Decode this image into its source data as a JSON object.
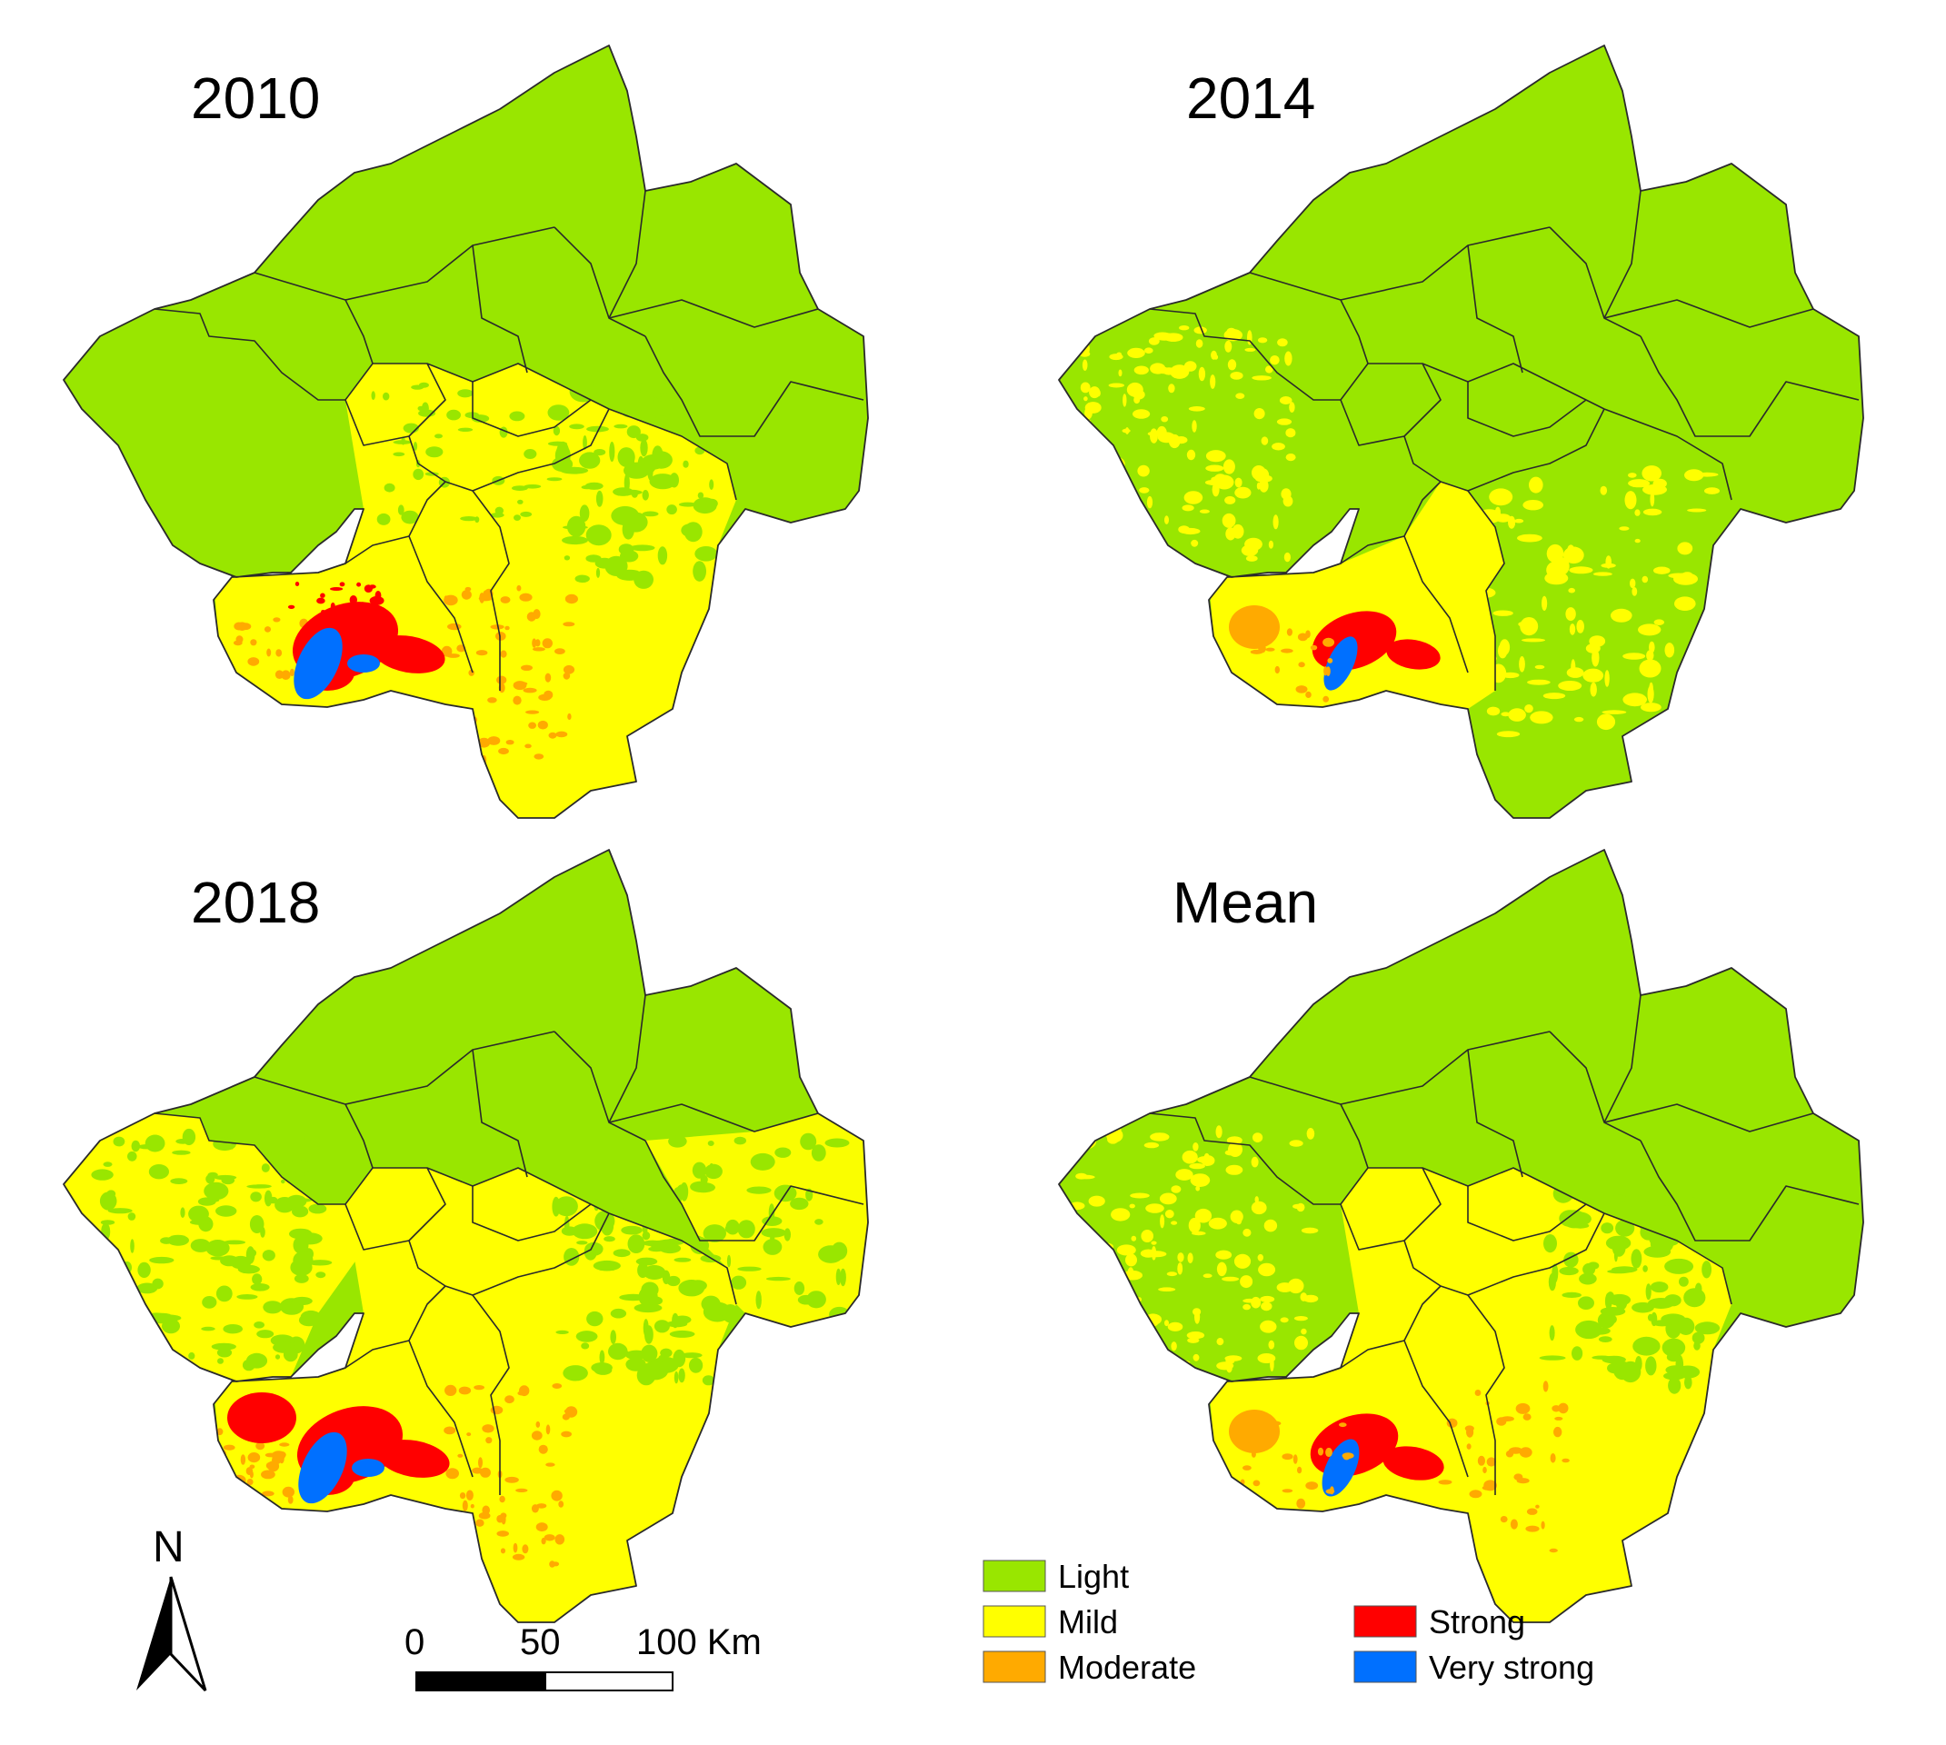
{
  "panels": [
    {
      "title": "2010",
      "key": "p2010"
    },
    {
      "title": "2014",
      "key": "p2014"
    },
    {
      "title": "2018",
      "key": "p2018"
    },
    {
      "title": "Mean",
      "key": "mean"
    }
  ],
  "legend": {
    "items": [
      {
        "label": "Light",
        "color": "#99e600"
      },
      {
        "label": "Mild",
        "color": "#ffff00"
      },
      {
        "label": "Moderate",
        "color": "#ffaa00"
      },
      {
        "label": "Strong",
        "color": "#ff0000"
      },
      {
        "label": "Very strong",
        "color": "#0070ff"
      }
    ]
  },
  "scale_bar": {
    "ticks": [
      "0",
      "50",
      "100 Km"
    ]
  },
  "north_arrow": {
    "label": "N"
  }
}
